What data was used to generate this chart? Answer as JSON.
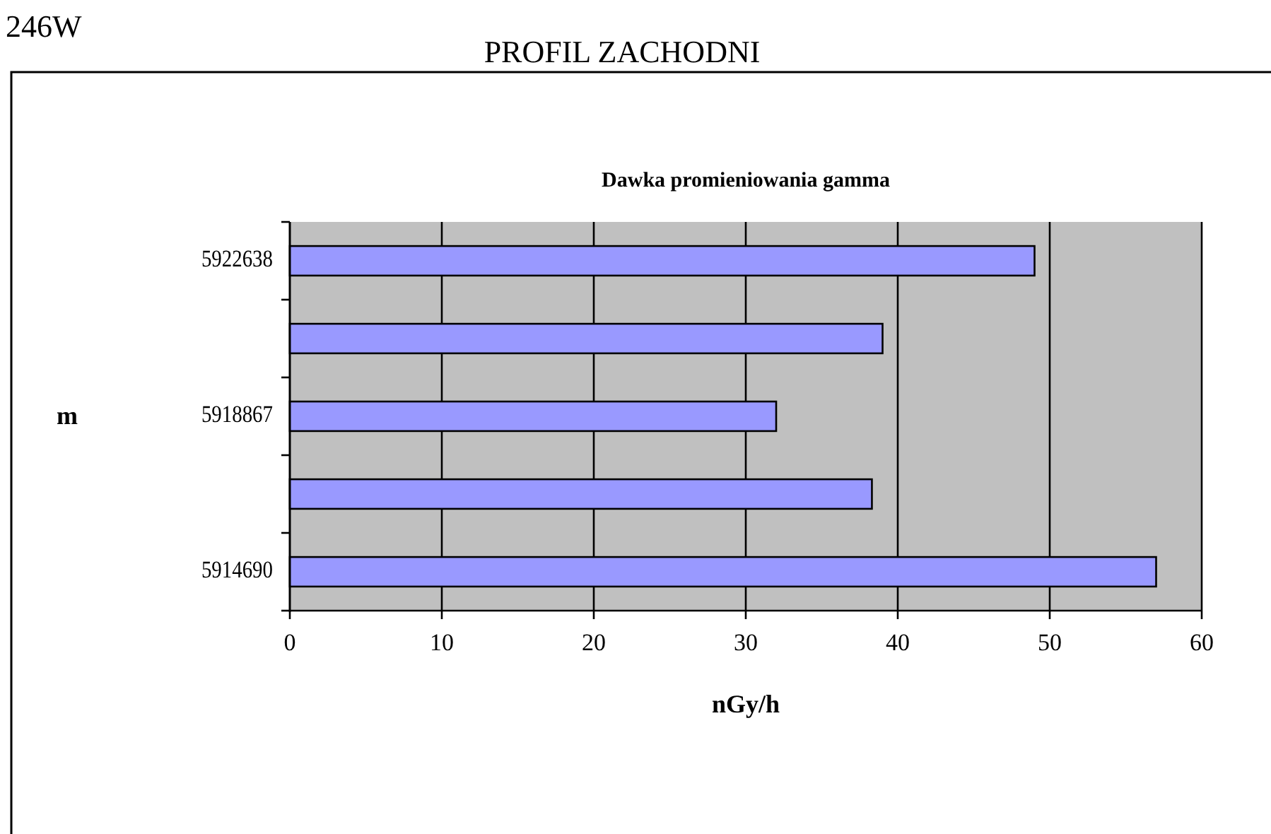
{
  "chart_data": {
    "type": "bar",
    "orientation": "horizontal",
    "title": "Dawka promieniowania gamma",
    "subtitle": "PROFIL ZACHODNI",
    "annotations": [
      "246W"
    ],
    "xlabel": "nGy/h",
    "ylabel": "m",
    "categories": [
      "5922638",
      null,
      "5918867",
      null,
      "5914690"
    ],
    "values": [
      49,
      39,
      32,
      38.3,
      57
    ],
    "color": "#9999ff",
    "xlim": [
      0,
      60
    ],
    "xticks": [
      0,
      10,
      20,
      30,
      40,
      50,
      60
    ],
    "grid": "x"
  }
}
